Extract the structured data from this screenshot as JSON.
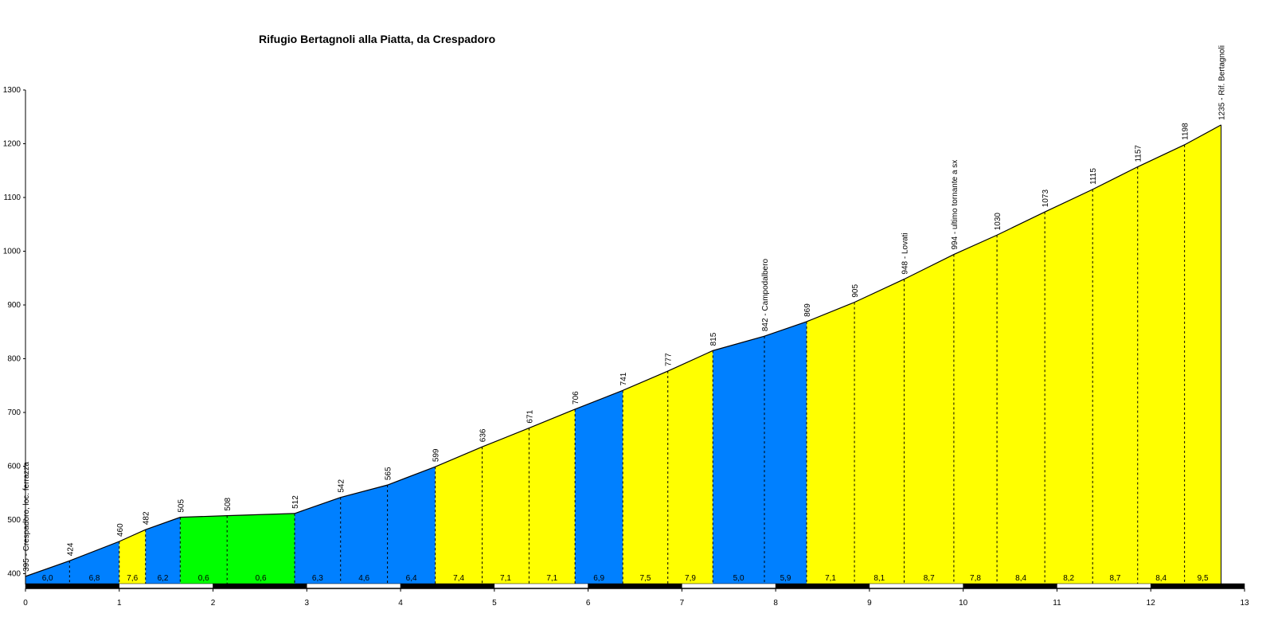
{
  "chart_data": {
    "type": "area",
    "title": "Rifugio Bertagnoli alla Piatta, da Crespadoro",
    "xlabel": "",
    "ylabel": "",
    "xlim": [
      0,
      13
    ],
    "ylim": [
      380,
      1300
    ],
    "x_ticks": [
      "0",
      "1",
      "2",
      "3",
      "4",
      "5",
      "6",
      "7",
      "8",
      "9",
      "10",
      "11",
      "12",
      "13"
    ],
    "y_ticks": [
      "400",
      "500",
      "600",
      "700",
      "800",
      "900",
      "1000",
      "1100",
      "1200",
      "1300"
    ],
    "points": [
      {
        "x": 0.0,
        "y": 395,
        "label": "395 - Crespadoro, loc. ferrazza"
      },
      {
        "x": 0.47,
        "y": 424,
        "label": "424"
      },
      {
        "x": 1.0,
        "y": 460,
        "label": "460"
      },
      {
        "x": 1.28,
        "y": 482,
        "label": "482"
      },
      {
        "x": 1.65,
        "y": 505,
        "label": "505"
      },
      {
        "x": 2.15,
        "y": 508,
        "label": "508"
      },
      {
        "x": 2.87,
        "y": 512,
        "label": "512"
      },
      {
        "x": 3.36,
        "y": 542,
        "label": "542"
      },
      {
        "x": 3.86,
        "y": 565,
        "label": "565"
      },
      {
        "x": 4.37,
        "y": 599,
        "label": "599"
      },
      {
        "x": 4.87,
        "y": 636,
        "label": "636"
      },
      {
        "x": 5.37,
        "y": 671,
        "label": "671"
      },
      {
        "x": 5.86,
        "y": 706,
        "label": "706"
      },
      {
        "x": 6.37,
        "y": 741,
        "label": "741"
      },
      {
        "x": 6.85,
        "y": 777,
        "label": "777"
      },
      {
        "x": 7.33,
        "y": 815,
        "label": "815"
      },
      {
        "x": 7.88,
        "y": 842,
        "label": "842 - Campodalbero"
      },
      {
        "x": 8.33,
        "y": 869,
        "label": "869"
      },
      {
        "x": 8.84,
        "y": 905,
        "label": "905"
      },
      {
        "x": 9.37,
        "y": 948,
        "label": "948 - Lovati"
      },
      {
        "x": 9.9,
        "y": 994,
        "label": "994 - ultimo tornante a sx"
      },
      {
        "x": 10.36,
        "y": 1030,
        "label": "1030"
      },
      {
        "x": 10.87,
        "y": 1073,
        "label": "1073"
      },
      {
        "x": 11.38,
        "y": 1115,
        "label": "1115"
      },
      {
        "x": 11.86,
        "y": 1157,
        "label": "1157"
      },
      {
        "x": 12.36,
        "y": 1198,
        "label": "1198"
      },
      {
        "x": 12.75,
        "y": 1235,
        "label": "1235 - Rif. Bertagnoli"
      }
    ],
    "segments": [
      {
        "grade": "6,0",
        "color": "#0080ff"
      },
      {
        "grade": "6,8",
        "color": "#0080ff"
      },
      {
        "grade": "7,6",
        "color": "#ffff00"
      },
      {
        "grade": "6,2",
        "color": "#0080ff"
      },
      {
        "grade": "0,6",
        "color": "#00ff00"
      },
      {
        "grade": "0,6",
        "color": "#00ff00"
      },
      {
        "grade": "6,3",
        "color": "#0080ff"
      },
      {
        "grade": "4,6",
        "color": "#0080ff"
      },
      {
        "grade": "6,4",
        "color": "#0080ff"
      },
      {
        "grade": "7,4",
        "color": "#ffff00"
      },
      {
        "grade": "7,1",
        "color": "#ffff00"
      },
      {
        "grade": "7,1",
        "color": "#ffff00"
      },
      {
        "grade": "6,9",
        "color": "#0080ff"
      },
      {
        "grade": "7,5",
        "color": "#ffff00"
      },
      {
        "grade": "7,9",
        "color": "#ffff00"
      },
      {
        "grade": "5,0",
        "color": "#0080ff"
      },
      {
        "grade": "5,9",
        "color": "#0080ff"
      },
      {
        "grade": "7,1",
        "color": "#ffff00"
      },
      {
        "grade": "8,1",
        "color": "#ffff00"
      },
      {
        "grade": "8,7",
        "color": "#ffff00"
      },
      {
        "grade": "7,8",
        "color": "#ffff00"
      },
      {
        "grade": "8,4",
        "color": "#ffff00"
      },
      {
        "grade": "8,2",
        "color": "#ffff00"
      },
      {
        "grade": "8,7",
        "color": "#ffff00"
      },
      {
        "grade": "8,4",
        "color": "#ffff00"
      },
      {
        "grade": "9,5",
        "color": "#ffff00"
      }
    ],
    "grid": false,
    "legend": "none"
  }
}
